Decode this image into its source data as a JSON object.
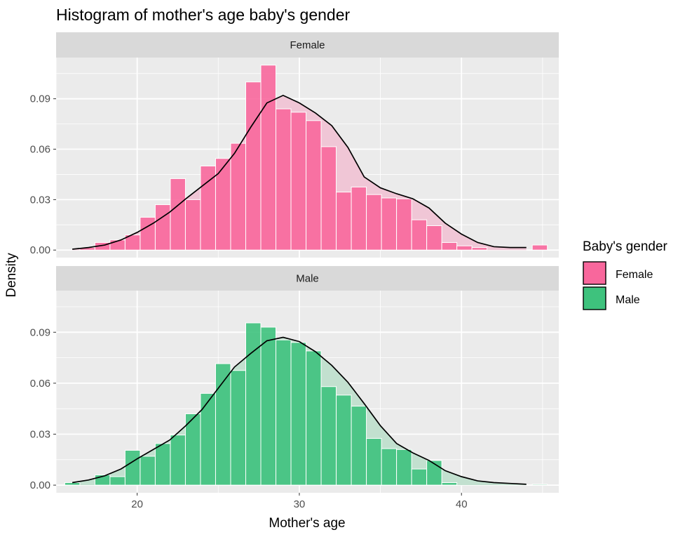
{
  "chart_data": {
    "type": "histogram",
    "title": "Histogram of mother's age baby's gender",
    "xlabel": "Mother's age",
    "ylabel": "Density",
    "xlim": [
      15,
      46
    ],
    "ylim": [
      -0.0045,
      0.1145
    ],
    "x_ticks": [
      20,
      30,
      40
    ],
    "y_ticks": [
      0.0,
      0.03,
      0.06,
      0.09
    ],
    "y_tick_labels": [
      "0.00",
      "0.03",
      "0.06",
      "0.09"
    ],
    "bin_width": 0.93,
    "bin_centers": [
      16.0,
      16.93,
      17.86,
      18.79,
      19.72,
      20.65,
      21.58,
      22.51,
      23.44,
      24.37,
      25.3,
      26.23,
      27.16,
      28.09,
      29.02,
      29.95,
      30.88,
      31.81,
      32.74,
      33.67,
      34.6,
      35.53,
      36.46,
      37.39,
      38.32,
      39.25,
      40.18,
      41.11,
      42.04,
      42.97,
      43.9,
      44.83
    ],
    "legend": {
      "title": "Baby's gender",
      "position": "right",
      "items": [
        {
          "label": "Female",
          "color": "#f8679c"
        },
        {
          "label": "Male",
          "color": "#3ec27d"
        }
      ]
    },
    "panels": [
      {
        "name": "Female",
        "fill_color": "#f8679c",
        "density_fill": "#f0c6d6",
        "hist_density": [
          0,
          0.0015,
          0.0045,
          0.006,
          0.009,
          0.0195,
          0.027,
          0.0425,
          0.03,
          0.05,
          0.0545,
          0.0635,
          0.1,
          0.11,
          0.084,
          0.082,
          0.077,
          0.0615,
          0.0345,
          0.0375,
          0.033,
          0.031,
          0.0305,
          0.018,
          0.0145,
          0.0045,
          0.0025,
          0.0015,
          0,
          0,
          0,
          0.003
        ],
        "density_curve": {
          "x": [
            16,
            17,
            18,
            19,
            20,
            21,
            22,
            23,
            24,
            25,
            26,
            27,
            28,
            29,
            30,
            31,
            32,
            33,
            34,
            35,
            36,
            37,
            38,
            39,
            40,
            41,
            42,
            43,
            44
          ],
          "y": [
            0.0005,
            0.0015,
            0.003,
            0.006,
            0.0105,
            0.016,
            0.0225,
            0.0305,
            0.038,
            0.0455,
            0.0575,
            0.073,
            0.0875,
            0.092,
            0.0875,
            0.0815,
            0.074,
            0.061,
            0.0435,
            0.037,
            0.0335,
            0.0305,
            0.025,
            0.016,
            0.0095,
            0.0045,
            0.002,
            0.0015,
            0.0015
          ]
        }
      },
      {
        "name": "Male",
        "fill_color": "#3ec27d",
        "density_fill": "#c2e0cf",
        "hist_density": [
          0.0015,
          0,
          0.006,
          0.005,
          0.0205,
          0.017,
          0.0245,
          0.0295,
          0.042,
          0.054,
          0.0715,
          0.0675,
          0.0955,
          0.093,
          0.0855,
          0.084,
          0.079,
          0.058,
          0.053,
          0.0465,
          0.0275,
          0.0215,
          0.021,
          0.0095,
          0.0145,
          0.0015,
          0,
          0,
          0,
          0,
          0,
          0.0005
        ],
        "density_curve": {
          "x": [
            16,
            17,
            18,
            19,
            20,
            21,
            22,
            23,
            24,
            25,
            26,
            27,
            28,
            29,
            30,
            31,
            32,
            33,
            34,
            35,
            36,
            37,
            38,
            39,
            40,
            41,
            42,
            43,
            44
          ],
          "y": [
            0.0015,
            0.003,
            0.0055,
            0.0095,
            0.0155,
            0.021,
            0.0265,
            0.035,
            0.0445,
            0.057,
            0.0695,
            0.0775,
            0.085,
            0.087,
            0.0845,
            0.0785,
            0.0705,
            0.0605,
            0.048,
            0.035,
            0.0245,
            0.019,
            0.0145,
            0.0085,
            0.005,
            0.0025,
            0.0015,
            0.001,
            0.0005
          ]
        }
      }
    ]
  }
}
